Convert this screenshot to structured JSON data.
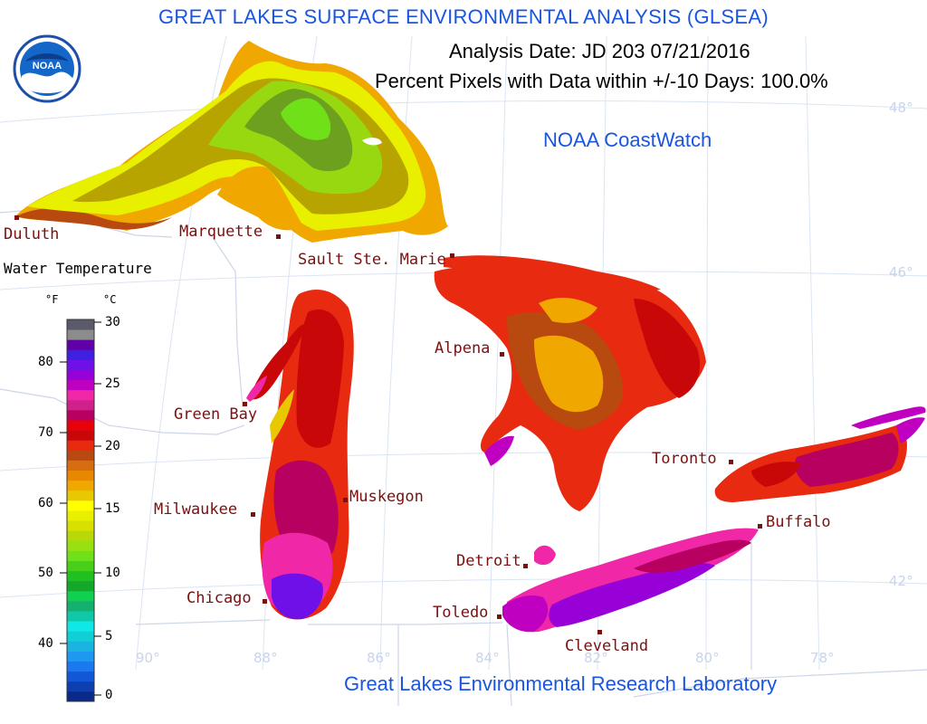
{
  "header": {
    "title": "GREAT LAKES SURFACE ENVIRONMENTAL ANALYSIS (GLSEA)",
    "analysis_date": "Analysis Date:  JD 203 07/21/2016",
    "percent_pixels": "Percent Pixels with Data within +/-10 Days: 100.0%",
    "coastwatch": "NOAA CoastWatch"
  },
  "footer": {
    "lab": "Great Lakes Environmental Research Laboratory"
  },
  "logo": {
    "text": "NOAA"
  },
  "legend": {
    "title": "Water Temperature",
    "unit_f": "°F",
    "unit_c": "°C",
    "f_ticks": [
      "80",
      "70",
      "60",
      "50",
      "40"
    ],
    "c_ticks": [
      "30",
      "25",
      "20",
      "15",
      "10",
      "5",
      "0"
    ],
    "colors_bottom_to_top": [
      "#0a2a8a",
      "#0d3fb0",
      "#1257d8",
      "#1b78ef",
      "#1e98f0",
      "#19b4e0",
      "#12cfd6",
      "#10e8e8",
      "#10c8a8",
      "#14b070",
      "#10d050",
      "#14a82a",
      "#20c020",
      "#48d018",
      "#70e018",
      "#98e010",
      "#b8d808",
      "#d8e000",
      "#e8f000",
      "#ffff00",
      "#e8c800",
      "#f0a800",
      "#e88800",
      "#d86c10",
      "#b84a10",
      "#e82a10",
      "#c80808",
      "#e8000a",
      "#b80060",
      "#d0208a",
      "#f028a8",
      "#c000c0",
      "#9800d8",
      "#7010e8",
      "#4020e0",
      "#6000a8",
      "#8c8c8c",
      "#5a5a6a"
    ]
  },
  "grid": {
    "longitudes": [
      "90°",
      "88°",
      "86°",
      "84°",
      "82°",
      "80°",
      "78°"
    ],
    "latitudes": [
      "48°",
      "46°",
      "42°"
    ]
  },
  "cities": {
    "duluth": "Duluth",
    "marquette": "Marquette",
    "sault_ste_marie": "Sault Ste. Marie",
    "green_bay": "Green Bay",
    "milwaukee": "Milwaukee",
    "chicago": "Chicago",
    "muskegon": "Muskegon",
    "alpena": "Alpena",
    "detroit": "Detroit",
    "toledo": "Toledo",
    "cleveland": "Cleveland",
    "toronto": "Toronto",
    "buffalo": "Buffalo"
  },
  "colors": {
    "title_blue": "#1a55e0",
    "city_red": "#7b1010",
    "grid_color": "#dbe4f3",
    "boundary_color": "#cdd6e8"
  }
}
